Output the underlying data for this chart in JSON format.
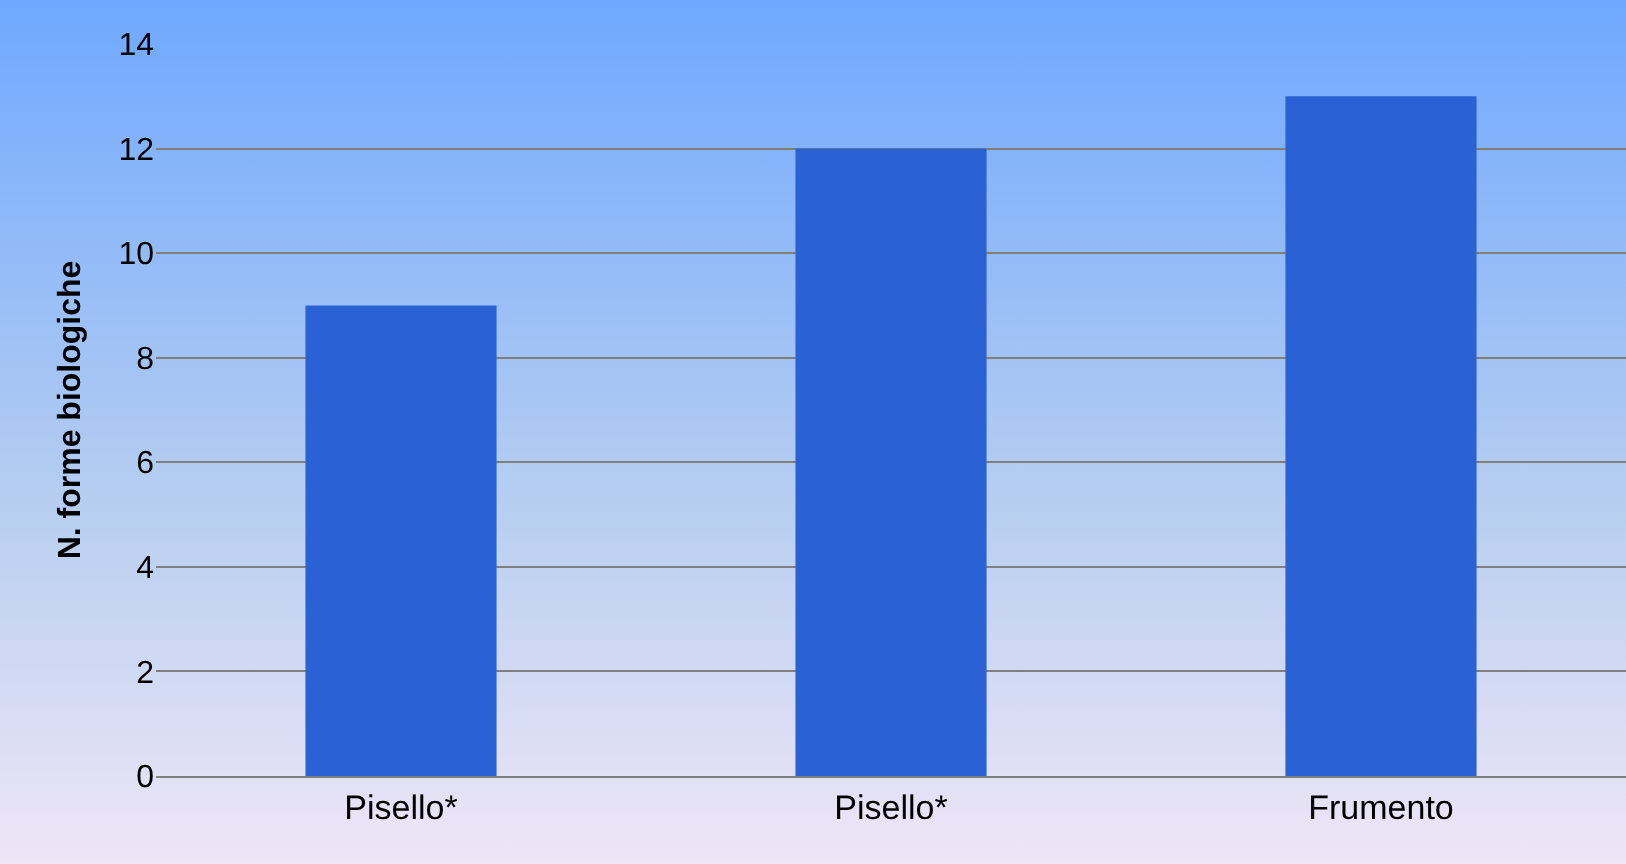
{
  "chart_data": {
    "type": "bar",
    "ylabel": "N. forme biologiche",
    "categories": [
      "Pisello*",
      "Pisello*",
      "Frumento"
    ],
    "values": [
      9,
      12,
      13
    ],
    "color": "#2a62d6",
    "ylim": [
      0,
      14
    ],
    "yticks": [
      0,
      2,
      4,
      6,
      8,
      10,
      12,
      14
    ],
    "grid": "y"
  }
}
